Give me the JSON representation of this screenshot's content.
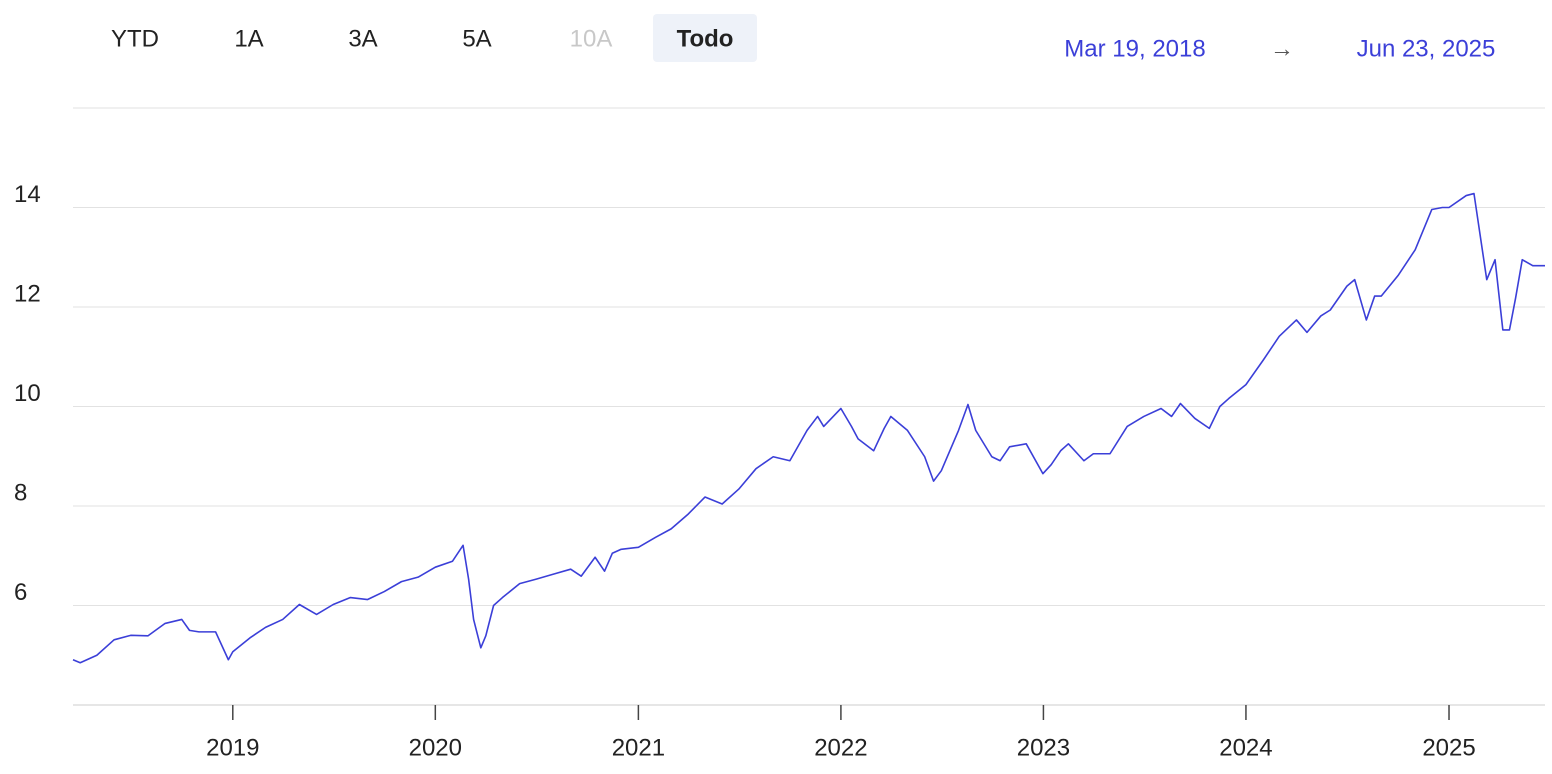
{
  "ui": {
    "range_buttons": [
      "YTD",
      "1A",
      "3A",
      "5A",
      "10A",
      "Todo"
    ],
    "selected_button": "Todo",
    "disabled_button": "10A",
    "range_start": "Mar 19, 2018",
    "range_arrow": "→",
    "range_end": "Jun 23, 2025"
  },
  "chart_data": {
    "type": "line",
    "color": "#3b3fd8",
    "grid": true,
    "x": [
      "2018-03-19",
      "2018-04-01",
      "2018-05-01",
      "2018-06-01",
      "2018-07-01",
      "2018-08-01",
      "2018-09-01",
      "2018-10-01",
      "2018-10-15",
      "2018-11-01",
      "2018-12-01",
      "2018-12-24",
      "2019-01-01",
      "2019-02-01",
      "2019-03-01",
      "2019-04-01",
      "2019-05-01",
      "2019-06-01",
      "2019-07-01",
      "2019-08-01",
      "2019-09-01",
      "2019-10-01",
      "2019-11-01",
      "2019-12-01",
      "2020-01-01",
      "2020-02-01",
      "2020-02-20",
      "2020-03-01",
      "2020-03-10",
      "2020-03-23",
      "2020-04-01",
      "2020-04-15",
      "2020-05-01",
      "2020-06-01",
      "2020-07-01",
      "2020-08-01",
      "2020-09-01",
      "2020-09-20",
      "2020-10-15",
      "2020-11-01",
      "2020-11-15",
      "2020-12-01",
      "2021-01-01",
      "2021-02-01",
      "2021-03-01",
      "2021-04-01",
      "2021-05-01",
      "2021-06-01",
      "2021-07-01",
      "2021-08-01",
      "2021-09-01",
      "2021-10-01",
      "2021-11-01",
      "2021-11-20",
      "2021-12-01",
      "2022-01-01",
      "2022-01-20",
      "2022-02-01",
      "2022-03-01",
      "2022-03-20",
      "2022-04-01",
      "2022-05-01",
      "2022-06-01",
      "2022-06-17",
      "2022-07-01",
      "2022-08-01",
      "2022-08-18",
      "2022-09-01",
      "2022-09-30",
      "2022-10-15",
      "2022-11-01",
      "2022-12-01",
      "2022-12-31",
      "2023-01-15",
      "2023-02-01",
      "2023-02-15",
      "2023-03-15",
      "2023-04-01",
      "2023-05-01",
      "2023-06-01",
      "2023-07-01",
      "2023-08-01",
      "2023-08-20",
      "2023-09-05",
      "2023-10-01",
      "2023-10-27",
      "2023-11-15",
      "2023-12-01",
      "2024-01-01",
      "2024-02-01",
      "2024-03-01",
      "2024-04-01",
      "2024-04-20",
      "2024-05-15",
      "2024-06-01",
      "2024-07-01",
      "2024-07-15",
      "2024-08-05",
      "2024-08-20",
      "2024-09-01",
      "2024-10-01",
      "2024-11-01",
      "2024-12-01",
      "2024-12-20",
      "2025-01-01",
      "2025-02-01",
      "2025-02-15",
      "2025-03-10",
      "2025-03-25",
      "2025-04-08",
      "2025-04-20",
      "2025-05-01",
      "2025-05-13",
      "2025-06-01",
      "2025-06-23"
    ],
    "values": [
      4.91,
      4.85,
      5.0,
      5.31,
      5.4,
      5.39,
      5.64,
      5.72,
      5.5,
      5.47,
      5.47,
      4.91,
      5.07,
      5.35,
      5.56,
      5.72,
      6.02,
      5.82,
      6.02,
      6.16,
      6.12,
      6.28,
      6.48,
      6.57,
      6.77,
      6.89,
      7.21,
      6.53,
      5.72,
      5.15,
      5.39,
      6.0,
      6.16,
      6.44,
      6.53,
      6.63,
      6.73,
      6.59,
      6.97,
      6.69,
      7.05,
      7.13,
      7.17,
      7.37,
      7.54,
      7.84,
      8.18,
      8.04,
      8.34,
      8.75,
      8.99,
      8.91,
      9.52,
      9.8,
      9.6,
      9.96,
      9.6,
      9.35,
      9.11,
      9.56,
      9.8,
      9.52,
      8.99,
      8.5,
      8.71,
      9.52,
      10.04,
      9.52,
      8.99,
      8.91,
      9.19,
      9.25,
      8.65,
      8.83,
      9.11,
      9.25,
      8.91,
      9.05,
      9.05,
      9.6,
      9.8,
      9.96,
      9.8,
      10.06,
      9.76,
      9.56,
      10.0,
      10.16,
      10.44,
      10.93,
      11.41,
      11.74,
      11.49,
      11.82,
      11.94,
      12.42,
      12.55,
      11.74,
      12.22,
      12.22,
      12.63,
      13.15,
      13.96,
      14.0,
      14.0,
      14.24,
      14.28,
      12.55,
      12.95,
      11.54,
      11.54,
      12.18,
      12.95,
      12.83,
      12.83
    ],
    "xlim": [
      "2018-03-19",
      "2025-06-23"
    ],
    "xticks": [
      {
        "value": "2019-01-01",
        "label": "2019"
      },
      {
        "value": "2020-01-01",
        "label": "2020"
      },
      {
        "value": "2021-01-01",
        "label": "2021"
      },
      {
        "value": "2022-01-01",
        "label": "2022"
      },
      {
        "value": "2023-01-01",
        "label": "2023"
      },
      {
        "value": "2024-01-01",
        "label": "2024"
      },
      {
        "value": "2025-01-01",
        "label": "2025"
      }
    ],
    "ylim": [
      4,
      16
    ],
    "yticks": [
      6,
      8,
      10,
      12,
      14
    ]
  }
}
